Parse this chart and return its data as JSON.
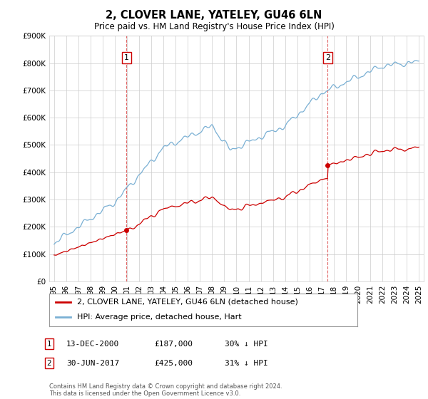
{
  "title": "2, CLOVER LANE, YATELEY, GU46 6LN",
  "subtitle": "Price paid vs. HM Land Registry's House Price Index (HPI)",
  "red_label": "2, CLOVER LANE, YATELEY, GU46 6LN (detached house)",
  "blue_label": "HPI: Average price, detached house, Hart",
  "sale1_date": "13-DEC-2000",
  "sale1_price": 187000,
  "sale1_hpi_pct": "30% ↓ HPI",
  "sale1_year": 2000.96,
  "sale2_date": "30-JUN-2017",
  "sale2_price": 425000,
  "sale2_hpi_pct": "31% ↓ HPI",
  "sale2_year": 2017.5,
  "ylim": [
    0,
    900000
  ],
  "xlim_start": 1994.6,
  "xlim_end": 2025.4,
  "footer": "Contains HM Land Registry data © Crown copyright and database right 2024.\nThis data is licensed under the Open Government Licence v3.0.",
  "bg_color": "#ffffff",
  "grid_color": "#cccccc",
  "red_color": "#cc0000",
  "blue_color": "#7ab0d4"
}
